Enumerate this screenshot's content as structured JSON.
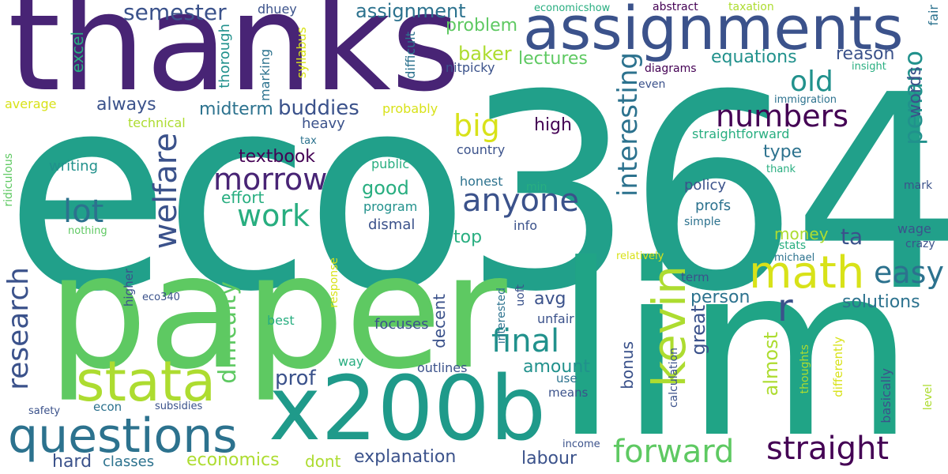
{
  "palette": {
    "purple": "#482475",
    "indigo": "#3b528b",
    "blue": "#2c728e",
    "teal": "#21918c",
    "green_teal": "#28ae80",
    "green": "#5ec962",
    "yellow_green": "#addc30",
    "yellow": "#d8e219",
    "dark_purple": "#440154"
  },
  "words": {
    "eco364": "eco364",
    "thanks": "thanks",
    "paper": "paper",
    "lim": "lim",
    "assignments": "assignments",
    "x200b": "x200b",
    "questions": "questions",
    "stata": "stata",
    "math": "math",
    "kevin": "kevin",
    "morrow": "morrow",
    "welfare": "welfare",
    "research": "research",
    "forward": "forward",
    "straight": "straight",
    "final": "final",
    "anyone": "anyone",
    "numbers": "numbers",
    "interesting": "interesting",
    "work": "work",
    "lot": "lot",
    "big": "big",
    "old": "old",
    "easy": "easy",
    "r": "r",
    "penano": "penano",
    "difficulty": "difficulty",
    "semester": "semester",
    "assignment": "assignment",
    "buddies": "buddies",
    "midterm": "midterm",
    "always": "always",
    "lectures": "lectures",
    "baker": "baker",
    "equations": "equations",
    "problem": "problem",
    "reason": "reason",
    "textbook": "textbook",
    "effort": "effort",
    "good": "good",
    "high": "high",
    "type": "type",
    "solutions": "solutions",
    "person": "person",
    "avg": "avg",
    "amount": "amount",
    "prof": "prof",
    "great": "great",
    "almost": "almost",
    "economics": "economics",
    "explanation": "explanation",
    "labour": "labour",
    "dont": "dont",
    "hard": "hard",
    "classes": "classes",
    "top": "top",
    "money": "money",
    "ta": "ta",
    "words": "words",
    "decent": "decent",
    "bonus": "bonus",
    "outlines": "outlines",
    "focuses": "focuses",
    "unfair": "unfair",
    "policy": "policy",
    "profs": "profs",
    "program": "program",
    "dismal": "dismal",
    "public": "public",
    "honest": "honest",
    "country": "country",
    "heavy": "heavy",
    "writing": "writing",
    "excel": "excel",
    "average": "average",
    "technical": "technical",
    "thorough": "thorough",
    "marking": "marking",
    "syllabus": "syllabus",
    "difficult": "difficult",
    "nitpicky": "nitpicky",
    "probably": "probably",
    "dhuey": "dhuey",
    "economicshow": "economicshow",
    "abstract": "abstract",
    "taxation": "taxation",
    "fair": "fair",
    "insight": "insight",
    "diagrams": "diagrams",
    "even": "even",
    "immigration": "immigration",
    "straightforward": "straightforward",
    "tax": "tax",
    "thank": "thank",
    "mark": "mark",
    "min": "min",
    "simple": "simple",
    "info": "info",
    "wage": "wage",
    "stats": "stats",
    "crazy": "crazy",
    "relatively": "relatively",
    "michael": "michael",
    "term": "term",
    "calculation": "calculation",
    "thoughts": "thoughts",
    "differently": "differently",
    "basically": "basically",
    "level": "level",
    "income": "income",
    "means": "means",
    "use": "use",
    "way": "way",
    "uoft": "uoft",
    "interested": "interested",
    "response": "response",
    "best": "best",
    "eco340": "eco340",
    "higher": "higher",
    "econ": "econ",
    "subsidies": "subsidies",
    "safety": "safety",
    "nothing": "nothing",
    "ridiculous": "ridiculous"
  }
}
